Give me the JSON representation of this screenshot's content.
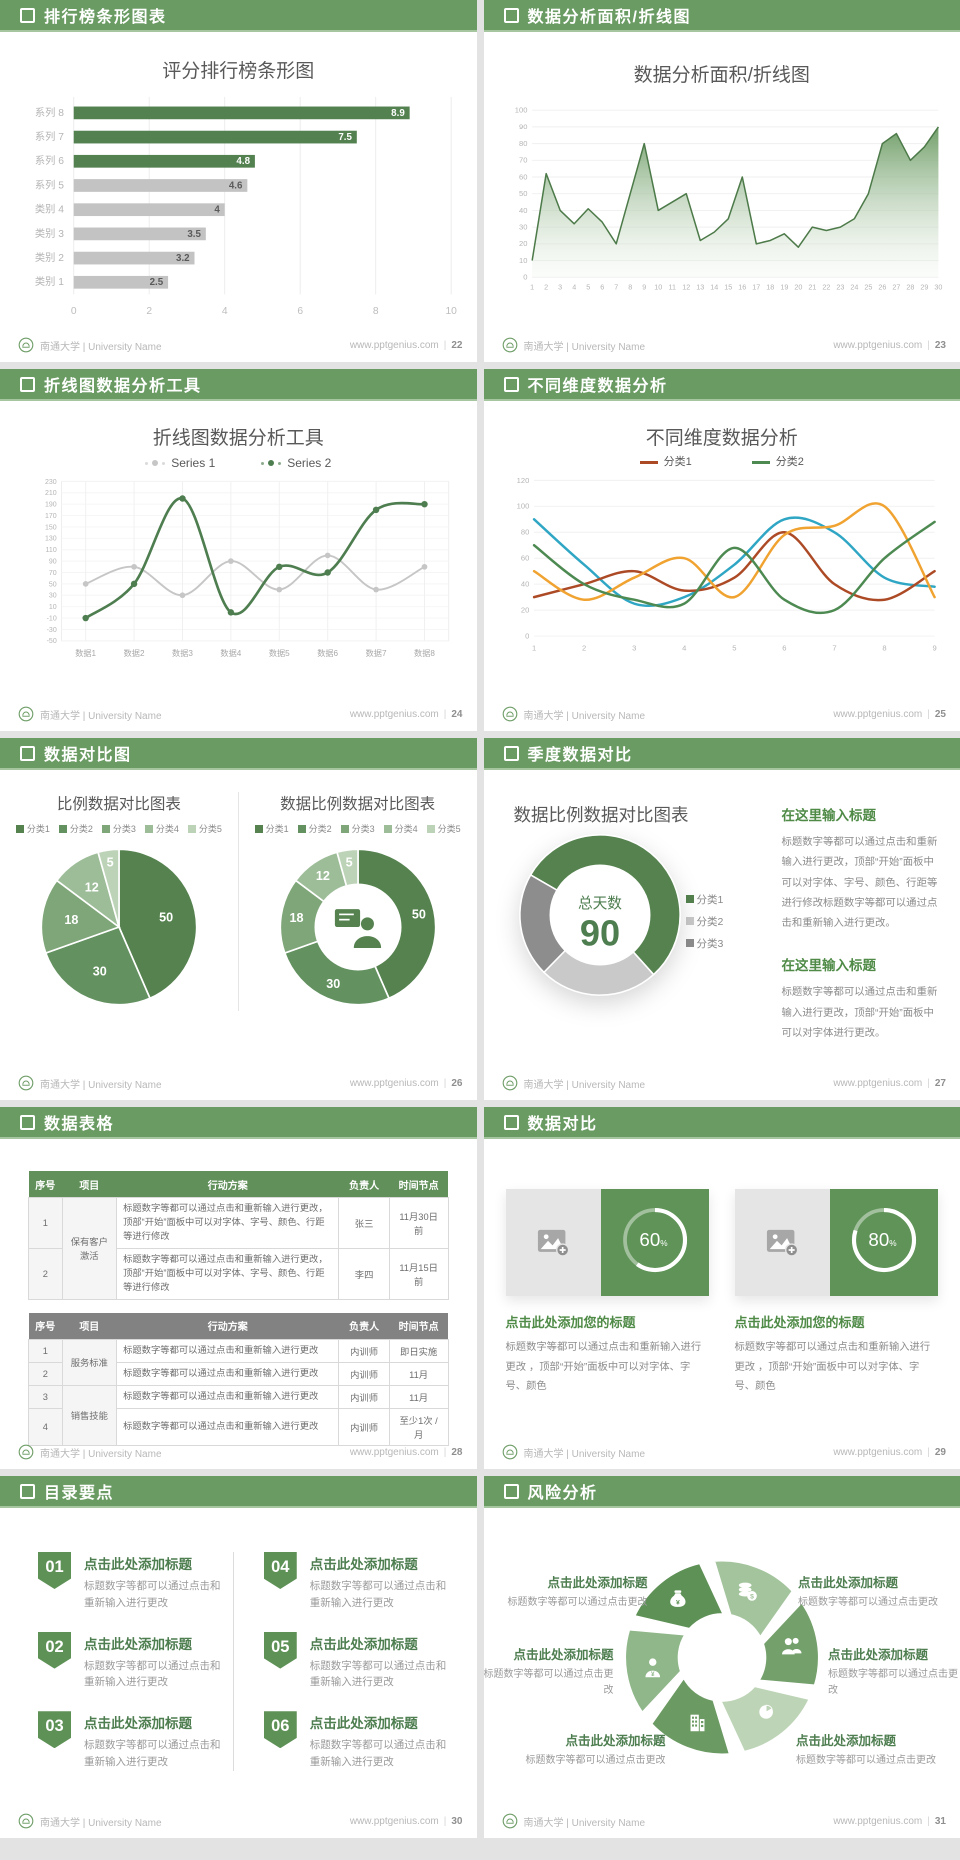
{
  "theme": {
    "green": "#699b62",
    "green_dark": "#538150",
    "gray_bar": "#c3c3c3",
    "table_green": "#61905a",
    "table_gray": "#828282",
    "text_dark": "#595959",
    "text_green": "#4e7e50"
  },
  "footer": {
    "brand": "南通大学 | University Name",
    "site": "www.pptgenius.com",
    "divider": "|"
  },
  "slides": [
    {
      "header": "排行榜条形图表",
      "page": "22",
      "title": "评分排行榜条形图"
    },
    {
      "header": "数据分析面积/折线图",
      "page": "23",
      "title": "数据分析面积/折线图"
    },
    {
      "header": "折线图数据分析工具",
      "page": "24",
      "title": "折线图数据分析工具"
    },
    {
      "header": "不同维度数据分析",
      "page": "25",
      "title": "不同维度数据分析"
    },
    {
      "header": "数据对比图",
      "page": "26",
      "pie1_title": "比例数据对比图表",
      "pie2_title": "数据比例数据对比图表"
    },
    {
      "header": "季度数据对比",
      "page": "27",
      "title": "数据比例数据对比图表",
      "blocks": [
        {
          "title": "在这里输入标题",
          "body": "标题数字等都可以通过点击和重新输入进行更改，顶部“开始”面板中可以对字体、字号、颜色、行距等进行修改标题数字等都可以通过点击和重新输入进行更改。"
        },
        {
          "title": "在这里输入标题",
          "body": "标题数字等都可以通过点击和重新输入进行更改，顶部“开始”面板中可以对字体进行更改。"
        }
      ]
    },
    {
      "header": "数据表格",
      "page": "28",
      "tableA": {
        "headers": [
          "序号",
          "项目",
          "行动方案",
          "负责人",
          "时间节点"
        ],
        "group": "保有客户激活",
        "rows": [
          {
            "no": "1",
            "action": "标题数字等都可以通过点击和重新输入进行更改，顶部“开始”面板中可以对字体、字号、颜色、行距等进行修改",
            "owner": "张三",
            "time": "11月30日前"
          },
          {
            "no": "2",
            "action": "标题数字等都可以通过点击和重新输入进行更改，顶部“开始”面板中可以对字体、字号、颜色、行距等进行修改",
            "owner": "李四",
            "time": "11月15日前"
          }
        ]
      },
      "tableB": {
        "headers": [
          "序号",
          "项目",
          "行动方案",
          "负责人",
          "时间节点"
        ],
        "groups": [
          "服务标准",
          "销售技能"
        ],
        "rows": [
          {
            "no": "1",
            "action": "标题数字等都可以通过点击和重新输入进行更改",
            "owner": "内训师",
            "time": "即日实施"
          },
          {
            "no": "2",
            "action": "标题数字等都可以通过点击和重新输入进行更改",
            "owner": "内训师",
            "time": "11月"
          },
          {
            "no": "3",
            "action": "标题数字等都可以通过点击和重新输入进行更改",
            "owner": "内训师",
            "time": "11月"
          },
          {
            "no": "4",
            "action": "标题数字等都可以通过点击和重新输入进行更改",
            "owner": "内训师",
            "time": "至少1次 /月"
          }
        ]
      }
    },
    {
      "header": "数据对比",
      "page": "29",
      "cards": [
        {
          "title": "点击此处添加您的标题",
          "body": "标题数字等都可以通过点击和重新输入进行更改 ，顶部“开始”面板中可以对字体、字号、颜色"
        },
        {
          "title": "点击此处添加您的标题",
          "body": "标题数字等都可以通过点击和重新输入进行更改 ，顶部“开始”面板中可以对字体、字号、颜色"
        }
      ]
    },
    {
      "header": "目录要点",
      "page": "30",
      "items": [
        {
          "num": "01",
          "title": "点击此处添加标题",
          "body": "标题数字等都可以通过点击和重新输入进行更改"
        },
        {
          "num": "02",
          "title": "点击此处添加标题",
          "body": "标题数字等都可以通过点击和重新输入进行更改"
        },
        {
          "num": "03",
          "title": "点击此处添加标题",
          "body": "标题数字等都可以通过点击和重新输入进行更改"
        },
        {
          "num": "04",
          "title": "点击此处添加标题",
          "body": "标题数字等都可以通过点击和重新输入进行更改"
        },
        {
          "num": "05",
          "title": "点击此处添加标题",
          "body": "标题数字等都可以通过点击和重新输入进行更改"
        },
        {
          "num": "06",
          "title": "点击此处添加标题",
          "body": "标题数字等都可以通过点击和重新输入进行更改"
        }
      ]
    },
    {
      "header": "风险分析",
      "page": "31",
      "items": [
        {
          "title": "点击此处添加标题",
          "body": "标题数字等都可以通过点击更改"
        },
        {
          "title": "点击此处添加标题",
          "body": "标题数字等都可以通过点击更改"
        },
        {
          "title": "点击此处添加标题",
          "body": "标题数字等都可以通过点击更改"
        },
        {
          "title": "点击此处添加标题",
          "body": "标题数字等都可以通过点击更改"
        },
        {
          "title": "点击此处添加标题",
          "body": "标题数字等都可以通过点击更改"
        },
        {
          "title": "点击此处添加标题",
          "body": "标题数字等都可以通过点击更改"
        }
      ]
    }
  ],
  "chart_data": [
    {
      "type": "bar",
      "orientation": "horizontal",
      "title": "评分排行榜条形图",
      "categories": [
        "系列 8",
        "系列 7",
        "系列 6",
        "系列 5",
        "类别 4",
        "类别 3",
        "类别 2",
        "类别 1"
      ],
      "values": [
        8.9,
        7.5,
        4.8,
        4.6,
        4,
        3.5,
        3.2,
        2.5
      ],
      "highlight": [
        true,
        true,
        true,
        false,
        false,
        false,
        false,
        false
      ],
      "xlim": [
        0,
        10
      ],
      "xticks": [
        0,
        2,
        4,
        6,
        8,
        10
      ],
      "bar_color": "#538150",
      "bar_color_muted": "#c3c3c3"
    },
    {
      "type": "area",
      "title": "数据分析面积/折线图",
      "x": [
        1,
        2,
        3,
        4,
        5,
        6,
        7,
        8,
        9,
        10,
        11,
        12,
        13,
        14,
        15,
        16,
        17,
        18,
        19,
        20,
        21,
        22,
        23,
        24,
        25,
        26,
        27,
        28,
        29,
        30
      ],
      "values": [
        10,
        62,
        40,
        32,
        41,
        33,
        20,
        50,
        80,
        40,
        45,
        50,
        22,
        27,
        35,
        60,
        20,
        22,
        26,
        18,
        30,
        28,
        30,
        35,
        50,
        80,
        86,
        70,
        78,
        90
      ],
      "ylim": [
        0,
        100
      ],
      "ytick_step": 10,
      "color": "#4d7a49"
    },
    {
      "type": "line",
      "title": "折线图数据分析工具",
      "categories": [
        "数据1",
        "数据2",
        "数据3",
        "数据4",
        "数据5",
        "数据6",
        "数据7",
        "数据8"
      ],
      "ylim": [
        -50,
        230
      ],
      "ytick_step": 20,
      "series": [
        {
          "name": "Series 1",
          "color": "#c6c6c6",
          "values": [
            50,
            80,
            30,
            90,
            40,
            100,
            40,
            80
          ]
        },
        {
          "name": "Series 2",
          "color": "#4e7e50",
          "values": [
            -10,
            50,
            200,
            0,
            80,
            70,
            180,
            190
          ]
        }
      ]
    },
    {
      "type": "line",
      "title": "不同维度数据分析",
      "x": [
        1,
        2,
        3,
        4,
        5,
        6,
        7,
        8,
        9
      ],
      "ylim": [
        0,
        120
      ],
      "ytick_step": 20,
      "series": [
        {
          "name": "分类1",
          "color": "#ad4a26",
          "values": [
            30,
            40,
            50,
            35,
            45,
            80,
            40,
            28,
            50
          ]
        },
        {
          "name": "分类2",
          "color": "#4d8a52",
          "values": [
            70,
            40,
            28,
            25,
            68,
            28,
            20,
            60,
            88
          ]
        },
        {
          "name": "",
          "color": "#2fa6c4",
          "values": [
            90,
            55,
            25,
            30,
            55,
            90,
            80,
            45,
            38
          ]
        },
        {
          "name": "",
          "color": "#f0a330",
          "values": [
            50,
            28,
            45,
            60,
            30,
            78,
            85,
            100,
            30
          ]
        }
      ]
    },
    {
      "type": "pie",
      "title": "比例数据对比图表",
      "labels": [
        "分类1",
        "分类2",
        "分类3",
        "分类4",
        "分类5"
      ],
      "values": [
        50,
        30,
        18,
        12,
        5
      ],
      "colors": [
        "#55824f",
        "#639160",
        "#7fa679",
        "#9dbd98",
        "#bdd3b8"
      ]
    },
    {
      "type": "pie",
      "donut": true,
      "title": "数据比例数据对比图表",
      "labels": [
        "分类1",
        "分类2",
        "分类3",
        "分类4",
        "分类5"
      ],
      "values": [
        50,
        30,
        18,
        12,
        5
      ],
      "colors": [
        "#55824f",
        "#639160",
        "#7fa679",
        "#9dbd98",
        "#bdd3b8"
      ]
    },
    {
      "type": "pie",
      "donut": true,
      "title": "数据比例数据对比图表",
      "labels": [
        "分类1",
        "分类2",
        "分类3"
      ],
      "values": [
        55,
        24,
        21
      ],
      "colors": [
        "#55824f",
        "#c9c9c9",
        "#8d8d8d"
      ],
      "center_label": "总天数",
      "center_value": "90",
      "start_angle": -60
    },
    {
      "type": "progress",
      "values": [
        60,
        80
      ],
      "unit": "%"
    }
  ]
}
